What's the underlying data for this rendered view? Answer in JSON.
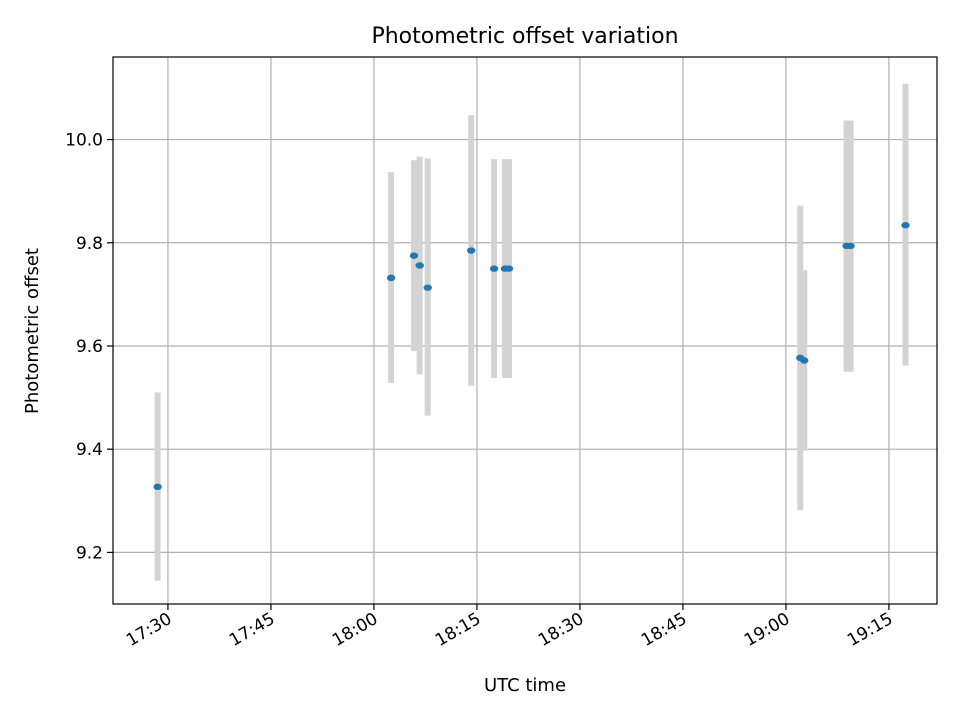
{
  "chart_data": {
    "type": "scatter",
    "title": "Photometric offset variation",
    "xlabel": "UTC time",
    "ylabel": "Photometric offset",
    "x_unit": "UTC clock time",
    "xlim": [
      "17:22",
      "19:22"
    ],
    "ylim": [
      9.1,
      10.16
    ],
    "x_ticks": [
      "17:30",
      "17:45",
      "18:00",
      "18:15",
      "18:30",
      "18:45",
      "19:00",
      "19:15"
    ],
    "y_ticks": [
      "9.2",
      "9.4",
      "9.6",
      "9.8",
      "10.0"
    ],
    "grid": true,
    "legend": "none",
    "marker_color": "#1f77b4",
    "errorbar_color": "#d3d3d3",
    "points": [
      {
        "x": "17:28:30",
        "y": 9.327,
        "y_low": 9.145,
        "y_high": 9.51
      },
      {
        "x": "18:02:30",
        "y": 9.732,
        "y_low": 9.528,
        "y_high": 9.937
      },
      {
        "x": "18:05:50",
        "y": 9.775,
        "y_low": 9.59,
        "y_high": 9.96
      },
      {
        "x": "18:06:40",
        "y": 9.756,
        "y_low": 9.545,
        "y_high": 9.967
      },
      {
        "x": "18:07:50",
        "y": 9.713,
        "y_low": 9.465,
        "y_high": 9.963
      },
      {
        "x": "18:14:10",
        "y": 9.785,
        "y_low": 9.523,
        "y_high": 10.047
      },
      {
        "x": "18:17:30",
        "y": 9.75,
        "y_low": 9.538,
        "y_high": 9.962
      },
      {
        "x": "18:19:05",
        "y": 9.75,
        "y_low": 9.538,
        "y_high": 9.962
      },
      {
        "x": "18:19:40",
        "y": 9.75,
        "y_low": 9.538,
        "y_high": 9.962
      },
      {
        "x": "19:02:05",
        "y": 9.577,
        "y_low": 9.282,
        "y_high": 9.872
      },
      {
        "x": "19:02:40",
        "y": 9.572,
        "y_low": 9.397,
        "y_high": 9.747
      },
      {
        "x": "19:08:50",
        "y": 9.794,
        "y_low": 9.55,
        "y_high": 10.037
      },
      {
        "x": "19:09:25",
        "y": 9.794,
        "y_low": 9.55,
        "y_high": 10.037
      },
      {
        "x": "19:17:25",
        "y": 9.834,
        "y_low": 9.562,
        "y_high": 10.108
      }
    ]
  }
}
